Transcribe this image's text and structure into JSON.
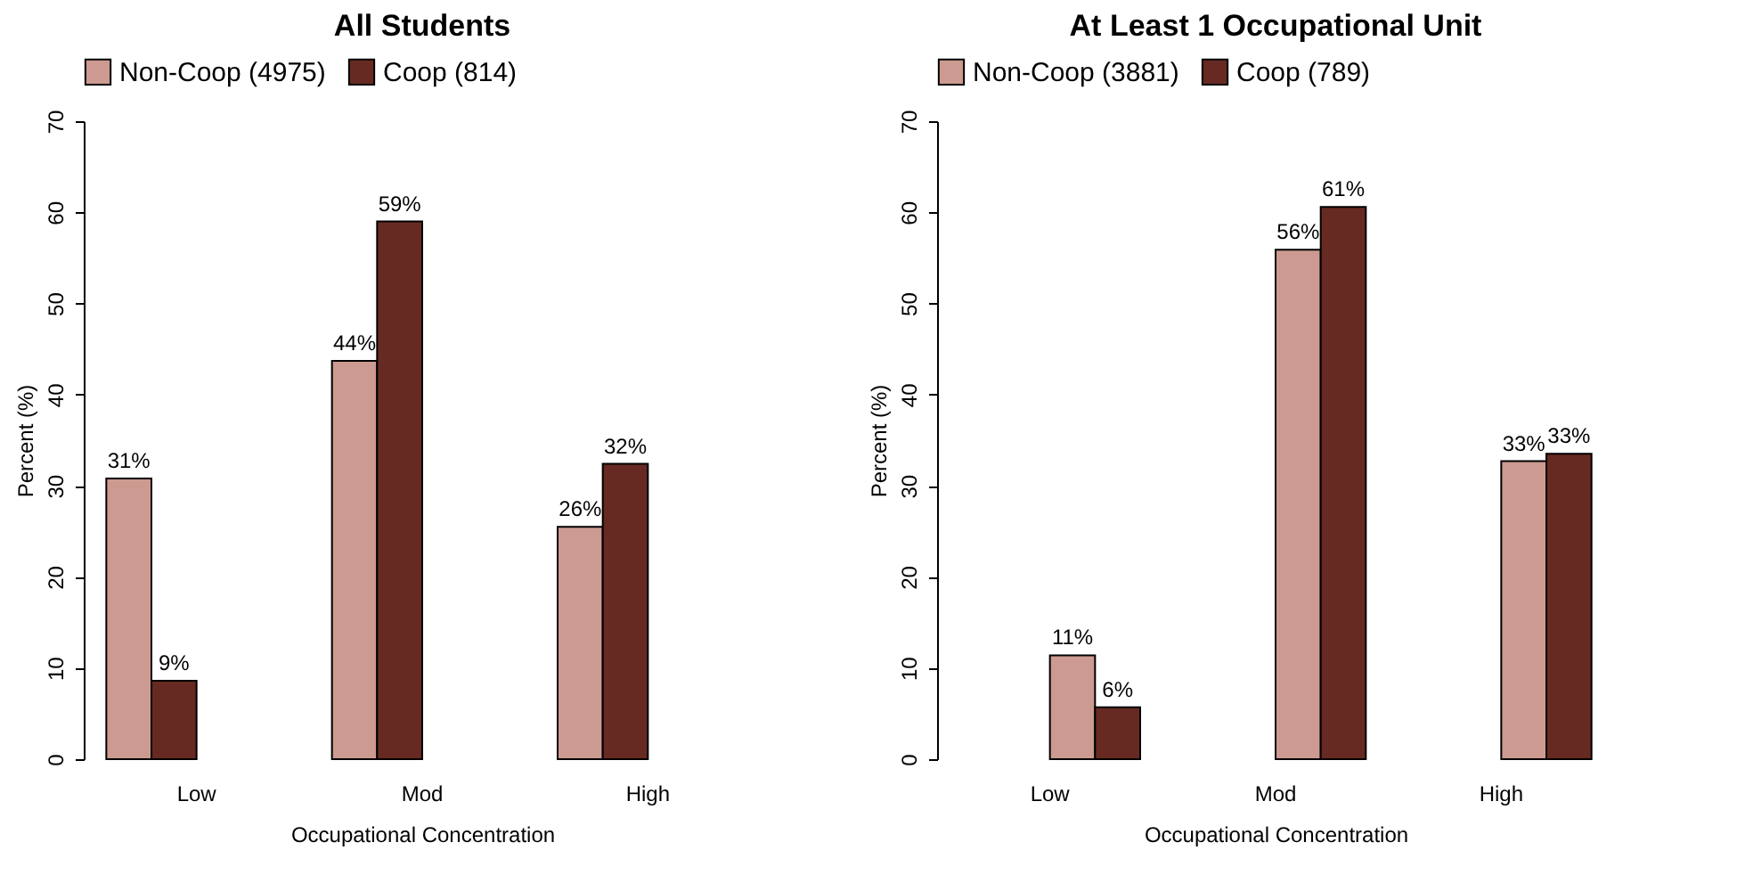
{
  "chart_data": [
    {
      "type": "bar",
      "title": "All Students",
      "xlabel": "Occupational Concentration",
      "ylabel": "Percent (%)",
      "categories": [
        "Low",
        "Mod",
        "High"
      ],
      "ylim": [
        0,
        70
      ],
      "yticks": [
        0,
        10,
        20,
        30,
        40,
        50,
        60,
        70
      ],
      "grid": false,
      "legend": "top",
      "series": [
        {
          "name": "Non-Coop (4975)",
          "color": "#cc9a90",
          "values": [
            30.8,
            43.7,
            25.5
          ],
          "value_labels": [
            "31%",
            "44%",
            "26%"
          ]
        },
        {
          "name": "Coop (814)",
          "color": "#662a22",
          "values": [
            8.6,
            59.0,
            32.4
          ],
          "value_labels": [
            "9%",
            "59%",
            "32%"
          ]
        }
      ]
    },
    {
      "type": "bar",
      "title": "At Least 1 Occupational Unit",
      "xlabel": "Occupational Concentration",
      "ylabel": "Percent (%)",
      "categories": [
        "Low",
        "Mod",
        "High"
      ],
      "ylim": [
        0,
        70
      ],
      "yticks": [
        0,
        10,
        20,
        30,
        40,
        50,
        60,
        70
      ],
      "grid": false,
      "legend": "top",
      "series": [
        {
          "name": "Non-Coop (3881)",
          "color": "#cc9a90",
          "values": [
            11.4,
            55.9,
            32.7
          ],
          "value_labels": [
            "11%",
            "56%",
            "33%"
          ]
        },
        {
          "name": "Coop (789)",
          "color": "#662a22",
          "values": [
            5.7,
            60.6,
            33.5
          ],
          "value_labels": [
            "6%",
            "61%",
            "33%"
          ]
        }
      ]
    }
  ]
}
